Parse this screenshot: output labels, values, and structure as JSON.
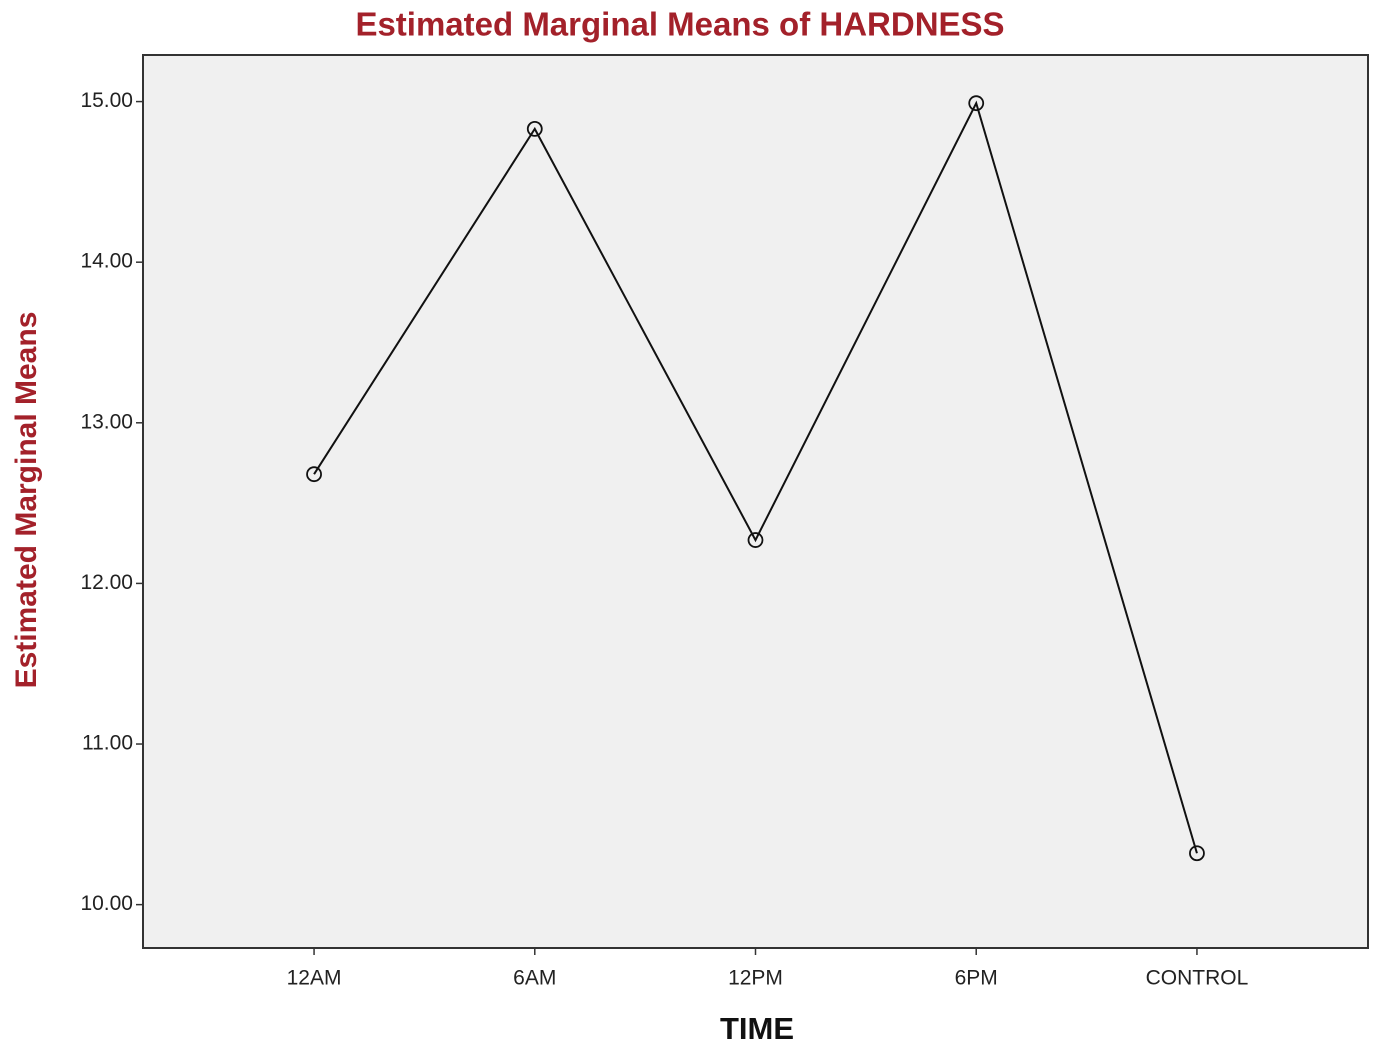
{
  "chart_data": {
    "type": "line",
    "title": "Estimated Marginal Means of HARDNESS",
    "x_label": "TIME",
    "y_label": "Estimated Marginal Means",
    "categories": [
      "12AM",
      "6AM",
      "12PM",
      "6PM",
      "CONTROL"
    ],
    "series": [
      {
        "name": "HARDNESS",
        "color": "#111111",
        "values": [
          12.68,
          14.83,
          12.27,
          14.99,
          10.32
        ]
      }
    ],
    "ylim": [
      9.73,
      15.29
    ],
    "yticks": [
      {
        "value": 10,
        "label": "10.00"
      },
      {
        "value": 11,
        "label": "11.00"
      },
      {
        "value": 12,
        "label": "12.00"
      },
      {
        "value": 13,
        "label": "13.00"
      },
      {
        "value": 14,
        "label": "14.00"
      },
      {
        "value": 15,
        "label": "15.00"
      }
    ],
    "grid": false
  }
}
